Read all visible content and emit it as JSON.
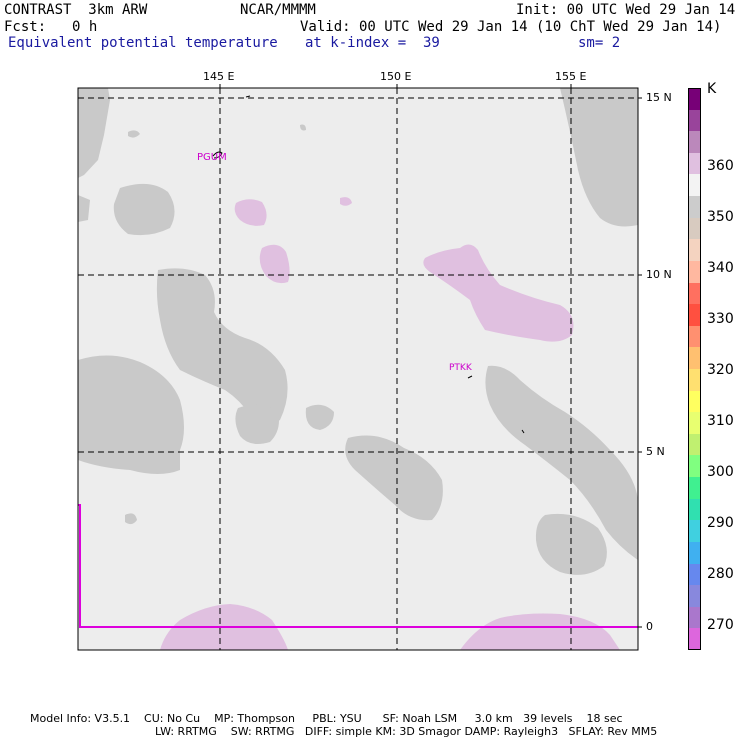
{
  "header": {
    "model": "CONTRAST  3km ARW",
    "org": "NCAR/MMMM",
    "init": "Init: 00 UTC Wed 29 Jan 14",
    "fcst_label": "Fcst:",
    "fcst_value": "0 h",
    "valid": "Valid: 00 UTC Wed 29 Jan 14 (10 ChT Wed 29 Jan 14)",
    "field": "Equivalent potential temperature",
    "level": "at k-index =  39",
    "smooth": "sm= 2"
  },
  "axes": {
    "lon_labels": [
      "145 E",
      "150 E",
      "155 E"
    ],
    "lat_labels": [
      "15 N",
      "10 N",
      "5 N",
      "0"
    ]
  },
  "stations": [
    "PGUM",
    "PTKK"
  ],
  "colorbar": {
    "unit": "K",
    "labels": [
      "360",
      "350",
      "340",
      "330",
      "320",
      "310",
      "300",
      "290",
      "280",
      "270"
    ],
    "colors": [
      "#770077",
      "#99449b",
      "#bb88bb",
      "#e0c0e0",
      "#f3f3f3",
      "#cccccc",
      "#d8cbc0",
      "#f4d3c0",
      "#ffb8a0",
      "#ff7060",
      "#ff5040",
      "#ff9070",
      "#ffc070",
      "#ffe070",
      "#ffff60",
      "#e8ff70",
      "#c0f070",
      "#80ff80",
      "#40f090",
      "#30e0b0",
      "#40d0e0",
      "#40b0f0",
      "#6688ee",
      "#8888dd",
      "#aa77cc",
      "#dd66dd"
    ]
  },
  "footer": {
    "line1": "Model Info: V3.5.1    CU: No Cu    MP: Thompson     PBL: YSU      SF: Noah LSM     3.0 km   39 levels    18 sec",
    "line2": "LW: RRTMG    SW: RRTMG   DIFF: simple KM: 3D Smagor DAMP: Rayleigh3   SFLAY: Rev MM5"
  }
}
